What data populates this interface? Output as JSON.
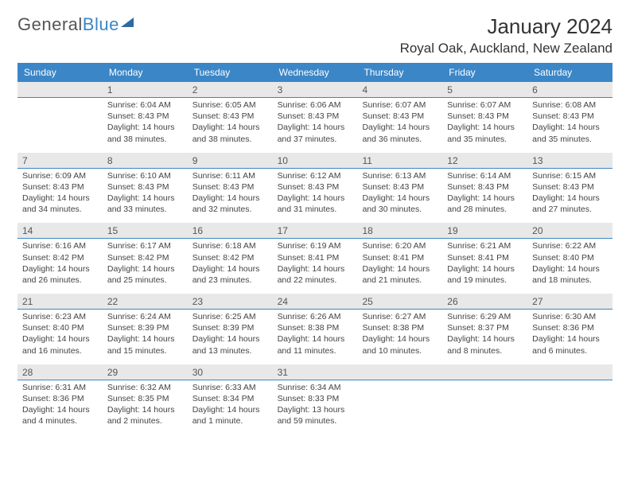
{
  "logo": {
    "text1": "General",
    "text2": "Blue"
  },
  "header": {
    "month": "January 2024",
    "location": "Royal Oak, Auckland, New Zealand"
  },
  "colors": {
    "header_bg": "#3b86c7",
    "daynum_bg": "#e8e8e8",
    "daynum_border": "#3b86c7",
    "text": "#444444"
  },
  "dayNames": [
    "Sunday",
    "Monday",
    "Tuesday",
    "Wednesday",
    "Thursday",
    "Friday",
    "Saturday"
  ],
  "weeks": [
    [
      {
        "blank": true
      },
      {
        "day": "1",
        "sunrise": "Sunrise: 6:04 AM",
        "sunset": "Sunset: 8:43 PM",
        "dl1": "Daylight: 14 hours",
        "dl2": "and 38 minutes."
      },
      {
        "day": "2",
        "sunrise": "Sunrise: 6:05 AM",
        "sunset": "Sunset: 8:43 PM",
        "dl1": "Daylight: 14 hours",
        "dl2": "and 38 minutes."
      },
      {
        "day": "3",
        "sunrise": "Sunrise: 6:06 AM",
        "sunset": "Sunset: 8:43 PM",
        "dl1": "Daylight: 14 hours",
        "dl2": "and 37 minutes."
      },
      {
        "day": "4",
        "sunrise": "Sunrise: 6:07 AM",
        "sunset": "Sunset: 8:43 PM",
        "dl1": "Daylight: 14 hours",
        "dl2": "and 36 minutes."
      },
      {
        "day": "5",
        "sunrise": "Sunrise: 6:07 AM",
        "sunset": "Sunset: 8:43 PM",
        "dl1": "Daylight: 14 hours",
        "dl2": "and 35 minutes."
      },
      {
        "day": "6",
        "sunrise": "Sunrise: 6:08 AM",
        "sunset": "Sunset: 8:43 PM",
        "dl1": "Daylight: 14 hours",
        "dl2": "and 35 minutes."
      }
    ],
    [
      {
        "day": "7",
        "sunrise": "Sunrise: 6:09 AM",
        "sunset": "Sunset: 8:43 PM",
        "dl1": "Daylight: 14 hours",
        "dl2": "and 34 minutes."
      },
      {
        "day": "8",
        "sunrise": "Sunrise: 6:10 AM",
        "sunset": "Sunset: 8:43 PM",
        "dl1": "Daylight: 14 hours",
        "dl2": "and 33 minutes."
      },
      {
        "day": "9",
        "sunrise": "Sunrise: 6:11 AM",
        "sunset": "Sunset: 8:43 PM",
        "dl1": "Daylight: 14 hours",
        "dl2": "and 32 minutes."
      },
      {
        "day": "10",
        "sunrise": "Sunrise: 6:12 AM",
        "sunset": "Sunset: 8:43 PM",
        "dl1": "Daylight: 14 hours",
        "dl2": "and 31 minutes."
      },
      {
        "day": "11",
        "sunrise": "Sunrise: 6:13 AM",
        "sunset": "Sunset: 8:43 PM",
        "dl1": "Daylight: 14 hours",
        "dl2": "and 30 minutes."
      },
      {
        "day": "12",
        "sunrise": "Sunrise: 6:14 AM",
        "sunset": "Sunset: 8:43 PM",
        "dl1": "Daylight: 14 hours",
        "dl2": "and 28 minutes."
      },
      {
        "day": "13",
        "sunrise": "Sunrise: 6:15 AM",
        "sunset": "Sunset: 8:43 PM",
        "dl1": "Daylight: 14 hours",
        "dl2": "and 27 minutes."
      }
    ],
    [
      {
        "day": "14",
        "sunrise": "Sunrise: 6:16 AM",
        "sunset": "Sunset: 8:42 PM",
        "dl1": "Daylight: 14 hours",
        "dl2": "and 26 minutes."
      },
      {
        "day": "15",
        "sunrise": "Sunrise: 6:17 AM",
        "sunset": "Sunset: 8:42 PM",
        "dl1": "Daylight: 14 hours",
        "dl2": "and 25 minutes."
      },
      {
        "day": "16",
        "sunrise": "Sunrise: 6:18 AM",
        "sunset": "Sunset: 8:42 PM",
        "dl1": "Daylight: 14 hours",
        "dl2": "and 23 minutes."
      },
      {
        "day": "17",
        "sunrise": "Sunrise: 6:19 AM",
        "sunset": "Sunset: 8:41 PM",
        "dl1": "Daylight: 14 hours",
        "dl2": "and 22 minutes."
      },
      {
        "day": "18",
        "sunrise": "Sunrise: 6:20 AM",
        "sunset": "Sunset: 8:41 PM",
        "dl1": "Daylight: 14 hours",
        "dl2": "and 21 minutes."
      },
      {
        "day": "19",
        "sunrise": "Sunrise: 6:21 AM",
        "sunset": "Sunset: 8:41 PM",
        "dl1": "Daylight: 14 hours",
        "dl2": "and 19 minutes."
      },
      {
        "day": "20",
        "sunrise": "Sunrise: 6:22 AM",
        "sunset": "Sunset: 8:40 PM",
        "dl1": "Daylight: 14 hours",
        "dl2": "and 18 minutes."
      }
    ],
    [
      {
        "day": "21",
        "sunrise": "Sunrise: 6:23 AM",
        "sunset": "Sunset: 8:40 PM",
        "dl1": "Daylight: 14 hours",
        "dl2": "and 16 minutes."
      },
      {
        "day": "22",
        "sunrise": "Sunrise: 6:24 AM",
        "sunset": "Sunset: 8:39 PM",
        "dl1": "Daylight: 14 hours",
        "dl2": "and 15 minutes."
      },
      {
        "day": "23",
        "sunrise": "Sunrise: 6:25 AM",
        "sunset": "Sunset: 8:39 PM",
        "dl1": "Daylight: 14 hours",
        "dl2": "and 13 minutes."
      },
      {
        "day": "24",
        "sunrise": "Sunrise: 6:26 AM",
        "sunset": "Sunset: 8:38 PM",
        "dl1": "Daylight: 14 hours",
        "dl2": "and 11 minutes."
      },
      {
        "day": "25",
        "sunrise": "Sunrise: 6:27 AM",
        "sunset": "Sunset: 8:38 PM",
        "dl1": "Daylight: 14 hours",
        "dl2": "and 10 minutes."
      },
      {
        "day": "26",
        "sunrise": "Sunrise: 6:29 AM",
        "sunset": "Sunset: 8:37 PM",
        "dl1": "Daylight: 14 hours",
        "dl2": "and 8 minutes."
      },
      {
        "day": "27",
        "sunrise": "Sunrise: 6:30 AM",
        "sunset": "Sunset: 8:36 PM",
        "dl1": "Daylight: 14 hours",
        "dl2": "and 6 minutes."
      }
    ],
    [
      {
        "day": "28",
        "sunrise": "Sunrise: 6:31 AM",
        "sunset": "Sunset: 8:36 PM",
        "dl1": "Daylight: 14 hours",
        "dl2": "and 4 minutes."
      },
      {
        "day": "29",
        "sunrise": "Sunrise: 6:32 AM",
        "sunset": "Sunset: 8:35 PM",
        "dl1": "Daylight: 14 hours",
        "dl2": "and 2 minutes."
      },
      {
        "day": "30",
        "sunrise": "Sunrise: 6:33 AM",
        "sunset": "Sunset: 8:34 PM",
        "dl1": "Daylight: 14 hours",
        "dl2": "and 1 minute."
      },
      {
        "day": "31",
        "sunrise": "Sunrise: 6:34 AM",
        "sunset": "Sunset: 8:33 PM",
        "dl1": "Daylight: 13 hours",
        "dl2": "and 59 minutes."
      },
      {
        "blank": true
      },
      {
        "blank": true
      },
      {
        "blank": true
      }
    ]
  ]
}
